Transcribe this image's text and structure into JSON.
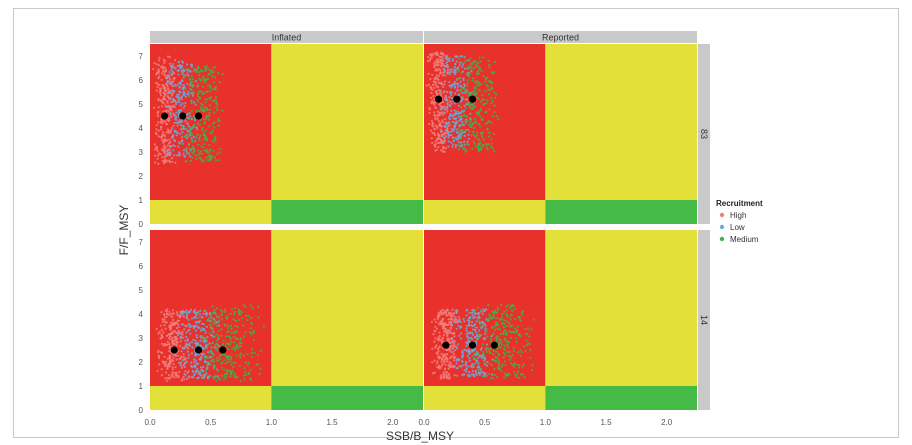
{
  "chart_data": {
    "type": "scatter",
    "facet_columns": [
      "Inflated",
      "Reported"
    ],
    "facet_rows": [
      "83",
      "14"
    ],
    "xlabel": "SSB/B_MSY",
    "ylabel": "F/F_MSY",
    "xlim": [
      0,
      2.25
    ],
    "ylim": [
      0,
      7.5
    ],
    "x_ticks": [
      "0.0",
      "0.5",
      "1.0",
      "1.5",
      "2.0"
    ],
    "y_ticks": [
      "0",
      "1",
      "2",
      "3",
      "4",
      "5",
      "6",
      "7"
    ],
    "zones": {
      "red": "#e8312a",
      "yellow": "#e4e03a",
      "green": "#46ba46",
      "x_threshold": 1.0,
      "y_threshold": 1.0
    },
    "legend": {
      "title": "Recruitment",
      "position": "right",
      "entries": [
        {
          "label": "High",
          "color": "#f08080"
        },
        {
          "label": "Low",
          "color": "#6fa8dc"
        },
        {
          "label": "Medium",
          "color": "#3cb44b"
        }
      ]
    },
    "panels": [
      {
        "row": "83",
        "col": "Inflated",
        "medians": [
          {
            "series": "High",
            "x": 0.12,
            "y": 4.5
          },
          {
            "series": "Low",
            "x": 0.27,
            "y": 4.5
          },
          {
            "series": "Medium",
            "x": 0.4,
            "y": 4.5
          }
        ],
        "clouds": [
          {
            "series": "High",
            "xmin": 0.02,
            "xmax": 0.22,
            "ymin": 2.5,
            "ymax": 7.0
          },
          {
            "series": "Low",
            "xmin": 0.12,
            "xmax": 0.4,
            "ymin": 2.8,
            "ymax": 6.8
          },
          {
            "series": "Medium",
            "xmin": 0.25,
            "xmax": 0.62,
            "ymin": 2.6,
            "ymax": 6.6
          }
        ]
      },
      {
        "row": "83",
        "col": "Reported",
        "medians": [
          {
            "series": "High",
            "x": 0.12,
            "y": 5.2
          },
          {
            "series": "Low",
            "x": 0.27,
            "y": 5.2
          },
          {
            "series": "Medium",
            "x": 0.4,
            "y": 5.2
          }
        ],
        "clouds": [
          {
            "series": "High",
            "xmin": 0.02,
            "xmax": 0.22,
            "ymin": 3.0,
            "ymax": 7.2
          },
          {
            "series": "Low",
            "xmin": 0.12,
            "xmax": 0.4,
            "ymin": 3.2,
            "ymax": 7.0
          },
          {
            "series": "Medium",
            "xmin": 0.25,
            "xmax": 0.62,
            "ymin": 3.0,
            "ymax": 7.0
          }
        ]
      },
      {
        "row": "14",
        "col": "Inflated",
        "medians": [
          {
            "series": "High",
            "x": 0.2,
            "y": 2.5
          },
          {
            "series": "Low",
            "x": 0.4,
            "y": 2.5
          },
          {
            "series": "Medium",
            "x": 0.6,
            "y": 2.5
          }
        ],
        "clouds": [
          {
            "series": "High",
            "xmin": 0.05,
            "xmax": 0.32,
            "ymin": 1.2,
            "ymax": 4.2
          },
          {
            "series": "Low",
            "xmin": 0.22,
            "xmax": 0.58,
            "ymin": 1.3,
            "ymax": 4.2
          },
          {
            "series": "Medium",
            "xmin": 0.38,
            "xmax": 0.95,
            "ymin": 1.2,
            "ymax": 4.4
          }
        ]
      },
      {
        "row": "14",
        "col": "Reported",
        "medians": [
          {
            "series": "High",
            "x": 0.18,
            "y": 2.7
          },
          {
            "series": "Low",
            "x": 0.4,
            "y": 2.7
          },
          {
            "series": "Medium",
            "x": 0.58,
            "y": 2.7
          }
        ],
        "clouds": [
          {
            "series": "High",
            "xmin": 0.05,
            "xmax": 0.3,
            "ymin": 1.3,
            "ymax": 4.2
          },
          {
            "series": "Low",
            "xmin": 0.22,
            "xmax": 0.58,
            "ymin": 1.4,
            "ymax": 4.2
          },
          {
            "series": "Medium",
            "xmin": 0.38,
            "xmax": 0.92,
            "ymin": 1.3,
            "ymax": 4.4
          }
        ]
      }
    ]
  }
}
